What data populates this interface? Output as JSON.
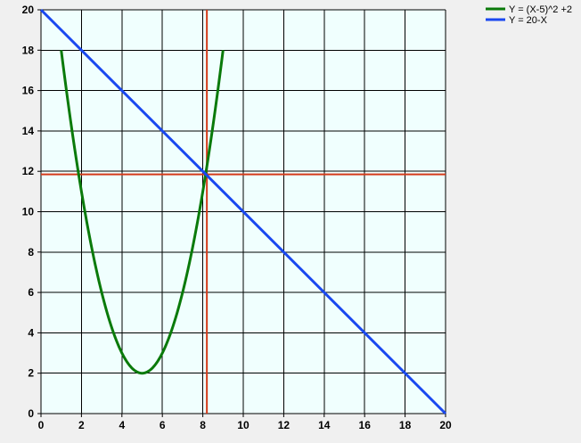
{
  "chart_data": {
    "type": "line",
    "xlim": [
      0,
      20
    ],
    "ylim": [
      0,
      20
    ],
    "x_ticks": [
      0,
      2,
      4,
      6,
      8,
      10,
      12,
      14,
      16,
      18,
      20
    ],
    "y_ticks": [
      0,
      2,
      4,
      6,
      8,
      10,
      12,
      14,
      16,
      18,
      20
    ],
    "grid": true,
    "legend_position": "top-right, outside plot",
    "plot_background": "#f0fffe",
    "series": [
      {
        "name": "Y = (X-5)^2 +2",
        "color": "#0a7a0a",
        "formula": "(X-5)^2+2",
        "x_range": [
          1,
          9
        ],
        "points": [
          [
            1,
            18
          ],
          [
            2,
            11
          ],
          [
            3,
            6
          ],
          [
            4,
            3
          ],
          [
            5,
            2
          ],
          [
            6,
            3
          ],
          [
            7,
            6
          ],
          [
            8,
            11
          ],
          [
            9,
            18
          ]
        ]
      },
      {
        "name": "Y = 20-X",
        "color": "#1a48f0",
        "formula": "20-X",
        "x_range": [
          0,
          20
        ],
        "points": [
          [
            0,
            20
          ],
          [
            20,
            0
          ]
        ]
      }
    ],
    "reference_lines": {
      "color": "#d43a1a",
      "vertical_x": 8.2,
      "horizontal_y": 11.85
    }
  }
}
